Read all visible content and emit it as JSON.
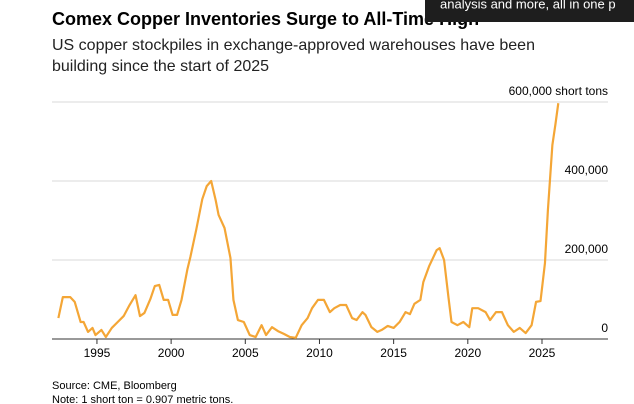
{
  "chart_data": {
    "type": "line",
    "title": "Comex Copper Inventories Surge to All-Time High",
    "subtitle": [
      "US copper stockpiles in exchange-approved warehouses have been",
      "building since the start of 2025"
    ],
    "source": "Source: CME, Bloomberg",
    "note": "Note: 1 short ton = 0.907 metric tons.",
    "x": [
      1992.4,
      1992.7,
      1993.2,
      1993.5,
      1993.9,
      1994.1,
      1994.4,
      1994.7,
      1994.9,
      1995.3,
      1995.6,
      1996.0,
      1996.4,
      1996.8,
      1997.2,
      1997.6,
      1997.9,
      1998.2,
      1998.6,
      1998.9,
      1999.2,
      1999.5,
      1999.8,
      2000.1,
      2000.4,
      2000.7,
      2001.1,
      2001.3,
      2001.7,
      2002.1,
      2002.4,
      2002.7,
      2003.0,
      2003.2,
      2003.6,
      2004.0,
      2004.2,
      2004.5,
      2004.9,
      2005.3,
      2005.7,
      2006.1,
      2006.4,
      2006.8,
      2007.2,
      2007.6,
      2008.0,
      2008.4,
      2008.8,
      2009.2,
      2009.5,
      2009.9,
      2010.3,
      2010.7,
      2011.0,
      2011.4,
      2011.8,
      2012.2,
      2012.5,
      2012.9,
      2013.1,
      2013.5,
      2013.9,
      2014.2,
      2014.6,
      2015.0,
      2015.4,
      2015.8,
      2016.1,
      2016.4,
      2016.8,
      2017.0,
      2017.4,
      2017.9,
      2018.1,
      2018.4,
      2018.7,
      2018.9,
      2019.3,
      2019.7,
      2020.1,
      2020.3,
      2020.7,
      2021.2,
      2021.5,
      2021.9,
      2022.3,
      2022.7,
      2023.1,
      2023.5,
      2023.9,
      2024.3,
      2024.6,
      2024.9,
      2025.2,
      2025.4,
      2025.7,
      2025.9,
      2026.1
    ],
    "series": [
      {
        "name": "Comex copper inventories",
        "color": "#f4a636",
        "values": [
          53000,
          106000,
          106000,
          94000,
          43000,
          43000,
          18000,
          28000,
          10000,
          23000,
          5000,
          28000,
          43000,
          58000,
          86000,
          111000,
          58000,
          66000,
          101000,
          134000,
          137000,
          99000,
          99000,
          61000,
          61000,
          99000,
          177000,
          208000,
          278000,
          354000,
          387000,
          400000,
          352000,
          314000,
          281000,
          205000,
          99000,
          48000,
          43000,
          10000,
          5000,
          35000,
          10000,
          30000,
          20000,
          13000,
          5000,
          3000,
          35000,
          53000,
          78000,
          99000,
          99000,
          68000,
          78000,
          86000,
          86000,
          53000,
          48000,
          68000,
          61000,
          30000,
          18000,
          23000,
          33000,
          28000,
          43000,
          68000,
          63000,
          89000,
          99000,
          144000,
          185000,
          225000,
          230000,
          200000,
          104000,
          43000,
          35000,
          43000,
          30000,
          78000,
          78000,
          68000,
          48000,
          68000,
          68000,
          35000,
          18000,
          28000,
          15000,
          35000,
          94000,
          96000,
          192000,
          327000,
          491000,
          542000,
          597000
        ]
      }
    ],
    "xlim": [
      1991.97,
      2029.45
    ],
    "xticks": [
      1995,
      2000,
      2005,
      2010,
      2015,
      2020,
      2025
    ],
    "ylim": [
      0,
      600000
    ],
    "yticks": [
      0,
      {
        "value": 200000,
        "label": "200,000"
      },
      {
        "value": 400000,
        "label": "400,000"
      },
      {
        "value": 600000,
        "label": "600,000 short tons"
      }
    ],
    "grid": true
  },
  "overlay": {
    "text": "analysis and more, all in one p"
  }
}
